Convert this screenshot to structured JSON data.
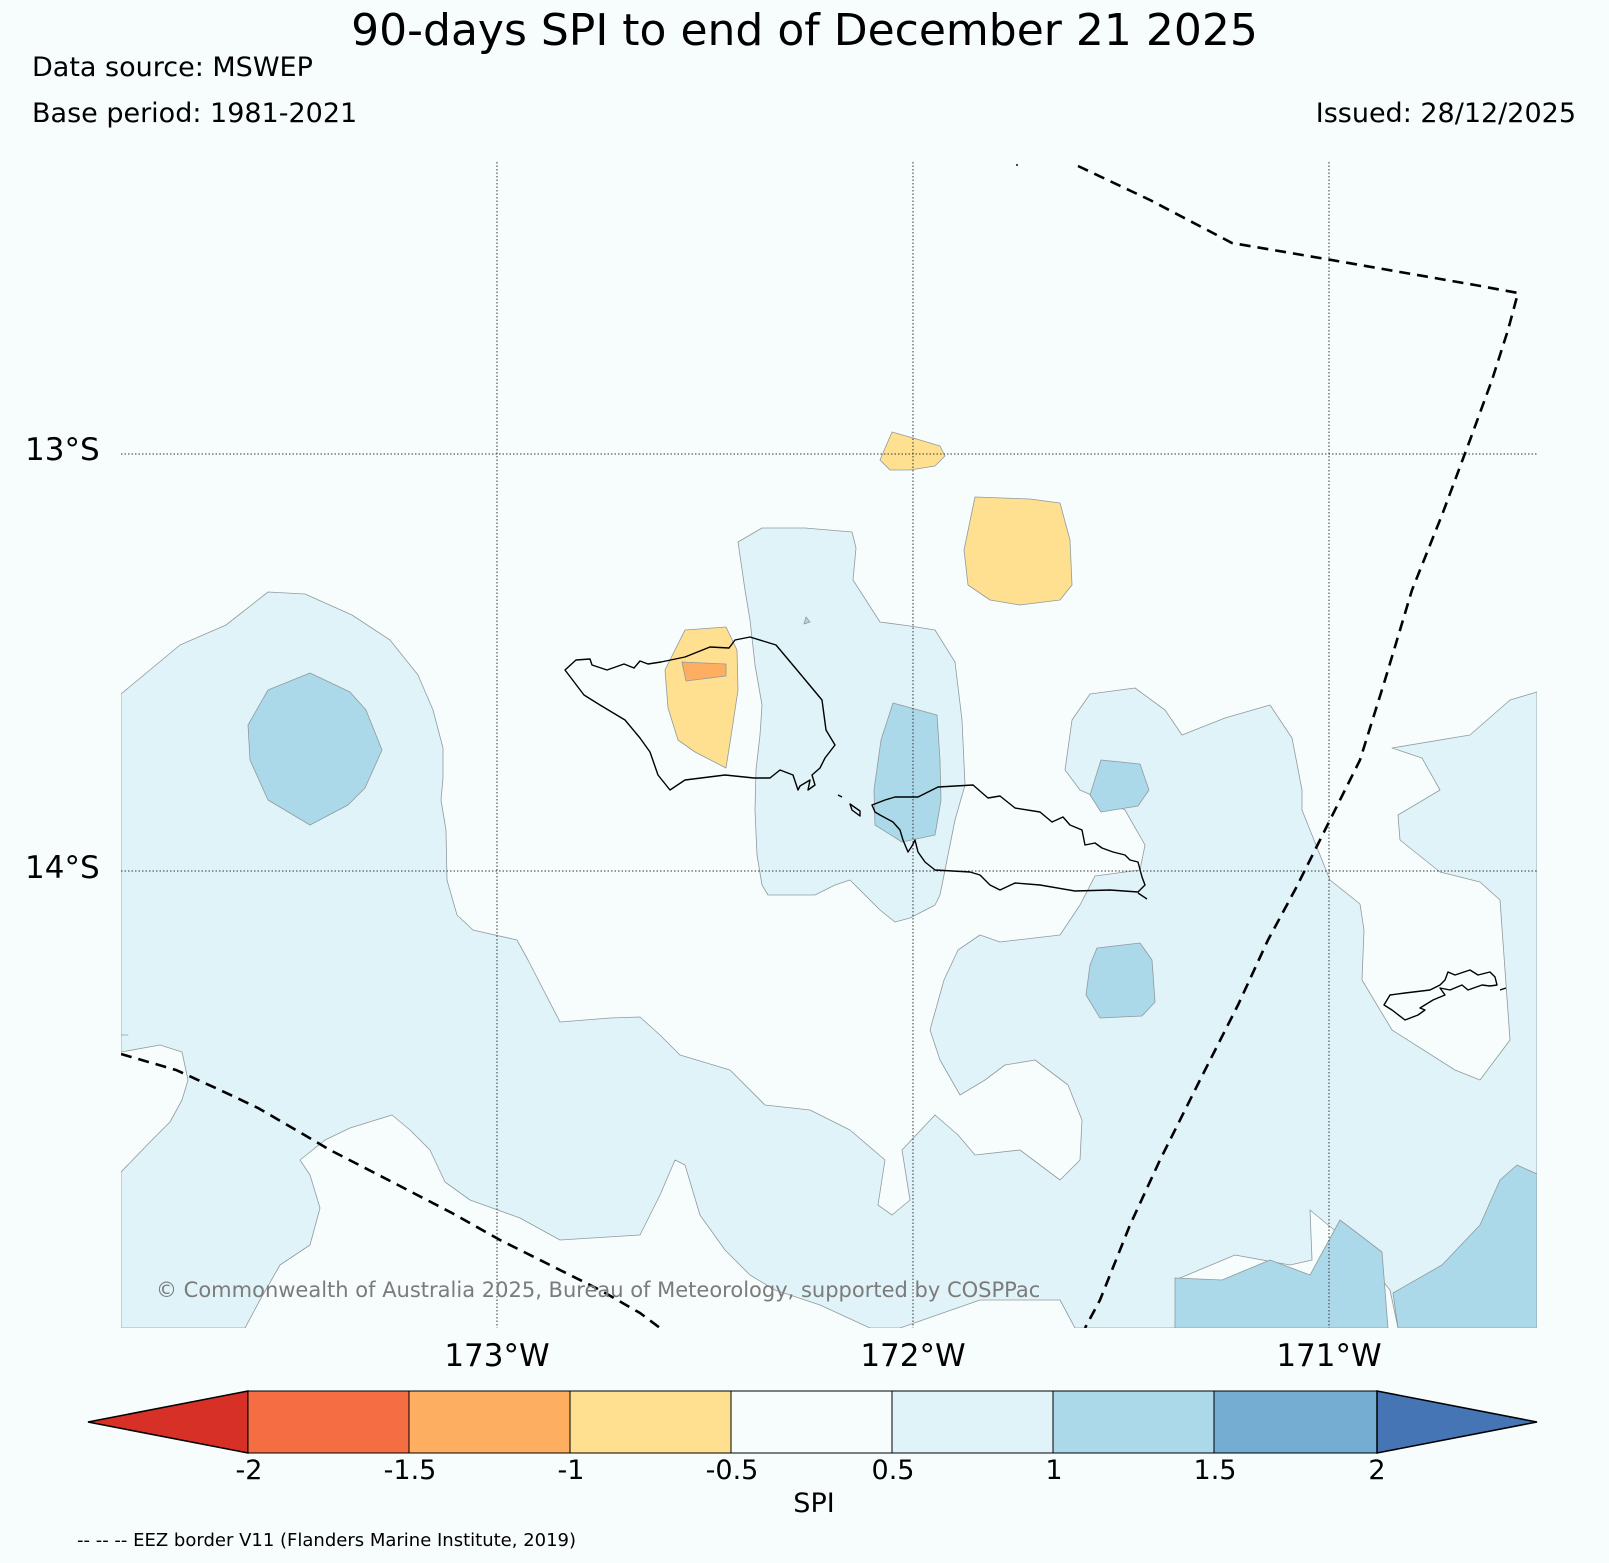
{
  "header": {
    "title": "90-days SPI to end of December 21 2025",
    "data_source": "Data source: MSWEP",
    "base_period": "Base period: 1981-2021",
    "issued": "Issued: 28/12/2025"
  },
  "map": {
    "lat_labels": [
      "13°S",
      "14°S"
    ],
    "lon_labels": [
      "173°W",
      "172°W",
      "171°W"
    ],
    "copyright": "© Commonwealth of Australia 2025, Bureau of Meteorology, supported by COSPPac",
    "background_color": "#f7fcfd",
    "coastline_color": "#000000",
    "eez_line_style": "dashed"
  },
  "colorbar": {
    "title": "SPI",
    "ticks": [
      "-2",
      "-1.5",
      "-1",
      "-0.5",
      "0.5",
      "1",
      "1.5",
      "2"
    ],
    "colors": [
      "#d73027",
      "#f46d43",
      "#fdae61",
      "#fee090",
      "#f7fcfd",
      "#e0f3f8",
      "#abd9e9",
      "#74add1",
      "#4575b4"
    ]
  },
  "footer": {
    "eez_note": "-- -- -- EEZ border V11 (Flanders Marine Institute, 2019)"
  }
}
